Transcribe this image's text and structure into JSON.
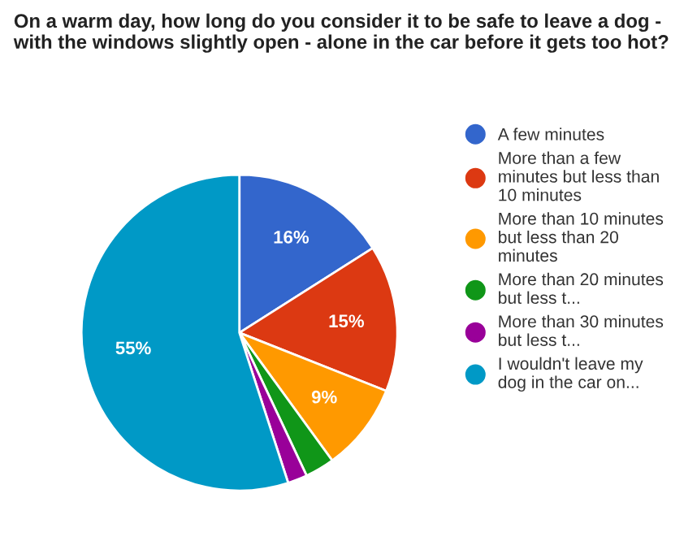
{
  "chart_data": {
    "type": "pie",
    "title": "On a warm day, how long do you consider it to be safe to leave a dog - with the windows slightly open - alone in the car before it gets too hot?",
    "categories": [
      "A few minutes",
      "More than a few minutes but less than 10 minutes",
      "More than 10 minutes but less than 20 minutes",
      "More than 20 minutes but less t...",
      "More than 30 minutes but less t...",
      "I wouldn't leave my dog in the car on..."
    ],
    "values": [
      16,
      15,
      9,
      3,
      2,
      55
    ],
    "colors": [
      "#3366cc",
      "#dc3912",
      "#ff9900",
      "#109618",
      "#990099",
      "#0099c6"
    ],
    "value_labels": [
      "16%",
      "15%",
      "9%",
      null,
      null,
      "55%"
    ],
    "legend": "right"
  }
}
